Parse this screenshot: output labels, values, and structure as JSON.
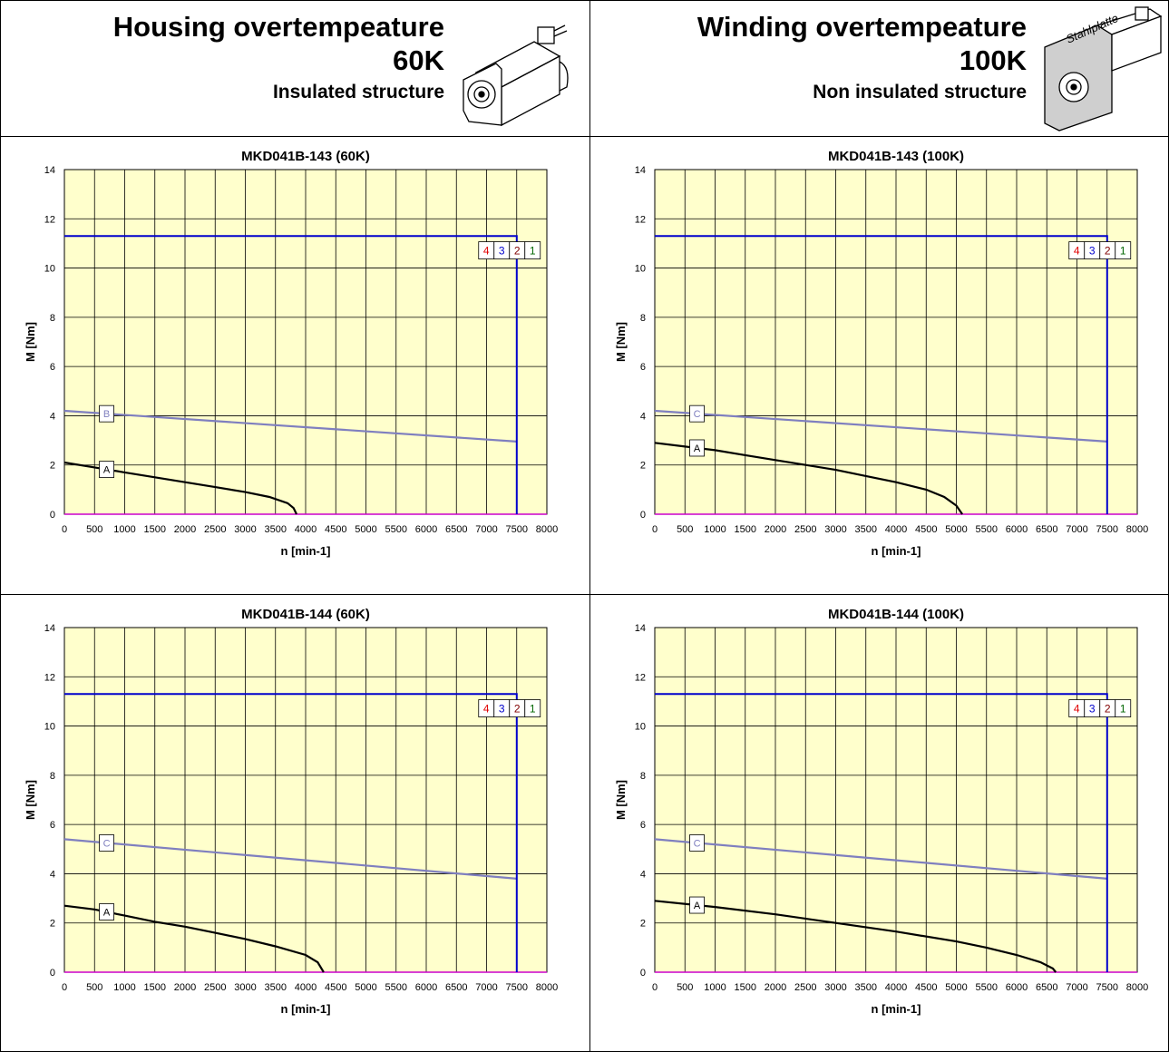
{
  "headers": [
    {
      "title": "Housing overtempeature",
      "temp": "60K",
      "structure": "Insulated structure",
      "icon": "servo-motor-icon"
    },
    {
      "title": "Winding overtempeature",
      "temp": "100K",
      "structure": "Non insulated structure",
      "icon": "servo-motor-on-steel-plate-icon",
      "plate_label": "Stahlplatte"
    }
  ],
  "colors": {
    "plot_bg": "#ffffcc",
    "grid": "#000000",
    "limit": "#0000cc",
    "curve_a": "#000000",
    "curve_bc": "#7f7fbf",
    "baseline": "#cc00cc",
    "legend_4": "#e00000",
    "legend_3": "#0000cc",
    "legend_2": "#800000",
    "legend_1": "#006600"
  },
  "chart_data": [
    {
      "type": "line",
      "title": "MKD041B-143 (60K)",
      "xlabel": "n [min-1]",
      "ylabel": "M [Nm]",
      "xlim": [
        0,
        8000
      ],
      "ylim": [
        0,
        14
      ],
      "xticks": [
        "0",
        "500",
        "1000",
        "1500",
        "2000",
        "2500",
        "3000",
        "3500",
        "4000",
        "4500",
        "5000",
        "5500",
        "6000",
        "6500",
        "7000",
        "7500",
        "8000"
      ],
      "yticks": [
        "0",
        "2",
        "4",
        "6",
        "8",
        "10",
        "12",
        "14"
      ],
      "legend": [
        "4",
        "3",
        "2",
        "1"
      ],
      "series": [
        {
          "name": "A",
          "points": [
            [
              0,
              2.1
            ],
            [
              500,
              1.9
            ],
            [
              1000,
              1.7
            ],
            [
              1500,
              1.5
            ],
            [
              2000,
              1.3
            ],
            [
              2500,
              1.1
            ],
            [
              3000,
              0.9
            ],
            [
              3400,
              0.7
            ],
            [
              3700,
              0.45
            ],
            [
              3800,
              0.25
            ],
            [
              3850,
              0
            ]
          ]
        },
        {
          "name": "B",
          "points": [
            [
              0,
              4.2
            ],
            [
              7500,
              2.95
            ]
          ]
        },
        {
          "name": "4 3 2 1",
          "points": [
            [
              0,
              11.3
            ],
            [
              7500,
              11.3
            ],
            [
              7500,
              0
            ]
          ]
        }
      ]
    },
    {
      "type": "line",
      "title": "MKD041B-143 (100K)",
      "xlabel": "n [min-1]",
      "ylabel": "M [Nm]",
      "xlim": [
        0,
        8000
      ],
      "ylim": [
        0,
        14
      ],
      "xticks": [
        "0",
        "500",
        "1000",
        "1500",
        "2000",
        "2500",
        "3000",
        "3500",
        "4000",
        "4500",
        "5000",
        "5500",
        "6000",
        "6500",
        "7000",
        "7500",
        "8000"
      ],
      "yticks": [
        "0",
        "2",
        "4",
        "6",
        "8",
        "10",
        "12",
        "14"
      ],
      "legend": [
        "4",
        "3",
        "2",
        "1"
      ],
      "series": [
        {
          "name": "A",
          "points": [
            [
              0,
              2.9
            ],
            [
              500,
              2.75
            ],
            [
              1000,
              2.6
            ],
            [
              1500,
              2.4
            ],
            [
              2000,
              2.2
            ],
            [
              2500,
              2.0
            ],
            [
              3000,
              1.8
            ],
            [
              3500,
              1.55
            ],
            [
              4000,
              1.3
            ],
            [
              4500,
              1.0
            ],
            [
              4800,
              0.7
            ],
            [
              5000,
              0.35
            ],
            [
              5100,
              0
            ]
          ]
        },
        {
          "name": "C",
          "points": [
            [
              0,
              4.2
            ],
            [
              7500,
              2.95
            ]
          ]
        },
        {
          "name": "4 3 2 1",
          "points": [
            [
              0,
              11.3
            ],
            [
              7500,
              11.3
            ],
            [
              7500,
              0
            ]
          ]
        }
      ]
    },
    {
      "type": "line",
      "title": "MKD041B-144 (60K)",
      "xlabel": "n [min-1]",
      "ylabel": "M [Nm]",
      "xlim": [
        0,
        8000
      ],
      "ylim": [
        0,
        14
      ],
      "xticks": [
        "0",
        "500",
        "1000",
        "1500",
        "2000",
        "2500",
        "3000",
        "3500",
        "4000",
        "4500",
        "5000",
        "5500",
        "6000",
        "6500",
        "7000",
        "7500",
        "8000"
      ],
      "yticks": [
        "0",
        "2",
        "4",
        "6",
        "8",
        "10",
        "12",
        "14"
      ],
      "legend": [
        "4",
        "3",
        "2",
        "1"
      ],
      "series": [
        {
          "name": "A",
          "points": [
            [
              0,
              2.7
            ],
            [
              500,
              2.55
            ],
            [
              1000,
              2.3
            ],
            [
              1500,
              2.05
            ],
            [
              2000,
              1.85
            ],
            [
              2500,
              1.6
            ],
            [
              3000,
              1.35
            ],
            [
              3500,
              1.05
            ],
            [
              4000,
              0.7
            ],
            [
              4200,
              0.4
            ],
            [
              4300,
              0
            ]
          ]
        },
        {
          "name": "C",
          "points": [
            [
              0,
              5.4
            ],
            [
              7500,
              3.8
            ]
          ]
        },
        {
          "name": "4 3 2 1",
          "points": [
            [
              0,
              11.3
            ],
            [
              7500,
              11.3
            ],
            [
              7500,
              0
            ]
          ]
        }
      ]
    },
    {
      "type": "line",
      "title": "MKD041B-144 (100K)",
      "xlabel": "n [min-1]",
      "ylabel": "M [Nm]",
      "xlim": [
        0,
        8000
      ],
      "ylim": [
        0,
        14
      ],
      "xticks": [
        "0",
        "500",
        "1000",
        "1500",
        "2000",
        "2500",
        "3000",
        "3500",
        "4000",
        "4500",
        "5000",
        "5500",
        "6000",
        "6500",
        "7000",
        "7500",
        "8000"
      ],
      "yticks": [
        "0",
        "2",
        "4",
        "6",
        "8",
        "10",
        "12",
        "14"
      ],
      "legend": [
        "4",
        "3",
        "2",
        "1"
      ],
      "series": [
        {
          "name": "A",
          "points": [
            [
              0,
              2.9
            ],
            [
              1000,
              2.65
            ],
            [
              2000,
              2.35
            ],
            [
              3000,
              2.0
            ],
            [
              4000,
              1.65
            ],
            [
              5000,
              1.25
            ],
            [
              5500,
              1.0
            ],
            [
              6000,
              0.7
            ],
            [
              6400,
              0.4
            ],
            [
              6600,
              0.15
            ],
            [
              6650,
              0
            ]
          ]
        },
        {
          "name": "C",
          "points": [
            [
              0,
              5.4
            ],
            [
              7500,
              3.8
            ]
          ]
        },
        {
          "name": "4 3 2 1",
          "points": [
            [
              0,
              11.3
            ],
            [
              7500,
              11.3
            ],
            [
              7500,
              0
            ]
          ]
        }
      ]
    }
  ]
}
